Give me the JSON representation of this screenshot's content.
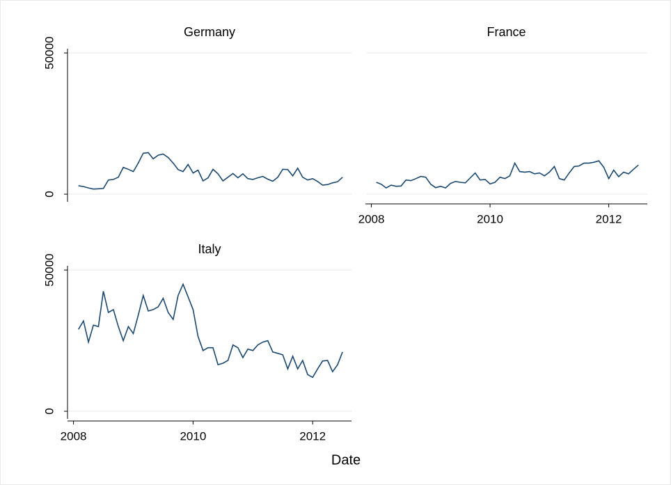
{
  "chart_data": [
    {
      "type": "line",
      "title": "Germany",
      "color": "#1a476f",
      "x": [
        2008.083,
        2008.167,
        2008.25,
        2008.333,
        2008.417,
        2008.5,
        2008.583,
        2008.667,
        2008.75,
        2008.833,
        2008.917,
        2009,
        2009.083,
        2009.167,
        2009.25,
        2009.333,
        2009.417,
        2009.5,
        2009.583,
        2009.667,
        2009.75,
        2009.833,
        2009.917,
        2010,
        2010.083,
        2010.167,
        2010.25,
        2010.333,
        2010.417,
        2010.5,
        2010.583,
        2010.667,
        2010.75,
        2010.833,
        2010.917,
        2011,
        2011.083,
        2011.167,
        2011.25,
        2011.333,
        2011.417,
        2011.5,
        2011.583,
        2011.667,
        2011.75,
        2011.833,
        2011.917,
        2012,
        2012.083,
        2012.167,
        2012.25,
        2012.333,
        2012.417,
        2012.5
      ],
      "values": [
        3000,
        2700,
        2200,
        1800,
        1900,
        2000,
        5000,
        5200,
        6000,
        9500,
        8800,
        8000,
        11000,
        14500,
        14700,
        12500,
        13800,
        14200,
        13000,
        11000,
        8700,
        8000,
        10500,
        7500,
        8500,
        4700,
        5800,
        8800,
        7200,
        4700,
        6000,
        7300,
        5800,
        7200,
        5500,
        5200,
        5800,
        6300,
        5300,
        4600,
        6000,
        8800,
        8700,
        6500,
        9200,
        6000,
        5000,
        5500,
        4500,
        3200,
        3400,
        4000,
        4400,
        6000
      ],
      "xlim": [
        2007.9,
        2012.65
      ],
      "ylim": [
        -2700,
        51500
      ],
      "yticks": [
        0,
        50000
      ],
      "grid": true
    },
    {
      "type": "line",
      "title": "France",
      "color": "#1a476f",
      "x": [
        2008.083,
        2008.167,
        2008.25,
        2008.333,
        2008.417,
        2008.5,
        2008.583,
        2008.667,
        2008.75,
        2008.833,
        2008.917,
        2009,
        2009.083,
        2009.167,
        2009.25,
        2009.333,
        2009.417,
        2009.5,
        2009.583,
        2009.667,
        2009.75,
        2009.833,
        2009.917,
        2010,
        2010.083,
        2010.167,
        2010.25,
        2010.333,
        2010.417,
        2010.5,
        2010.583,
        2010.667,
        2010.75,
        2010.833,
        2010.917,
        2011,
        2011.083,
        2011.167,
        2011.25,
        2011.333,
        2011.417,
        2011.5,
        2011.583,
        2011.667,
        2011.75,
        2011.833,
        2011.917,
        2012,
        2012.083,
        2012.167,
        2012.25,
        2012.333,
        2012.417,
        2012.5
      ],
      "values": [
        4200,
        3500,
        2200,
        3200,
        2800,
        2900,
        5000,
        4800,
        5500,
        6300,
        6000,
        3500,
        2300,
        2800,
        2200,
        3800,
        4500,
        4200,
        4000,
        5800,
        7500,
        5000,
        5200,
        3600,
        4200,
        6000,
        5500,
        6500,
        11000,
        8000,
        7800,
        8000,
        7200,
        7500,
        6500,
        7800,
        9800,
        5500,
        5000,
        7500,
        9800,
        10000,
        11000,
        11000,
        11300,
        11800,
        9500,
        5500,
        8500,
        6200,
        7800,
        7200,
        8800,
        10300
      ],
      "xlim": [
        2007.9,
        2012.65
      ],
      "ylim": [
        -2700,
        51500
      ],
      "yticks": [
        0,
        50000
      ],
      "xticks": [
        2008,
        2010,
        2012
      ],
      "grid": true
    },
    {
      "type": "line",
      "title": "Italy",
      "color": "#1a476f",
      "x": [
        2008.083,
        2008.167,
        2008.25,
        2008.333,
        2008.417,
        2008.5,
        2008.583,
        2008.667,
        2008.75,
        2008.833,
        2008.917,
        2009,
        2009.083,
        2009.167,
        2009.25,
        2009.333,
        2009.417,
        2009.5,
        2009.583,
        2009.667,
        2009.75,
        2009.833,
        2009.917,
        2010,
        2010.083,
        2010.167,
        2010.25,
        2010.333,
        2010.417,
        2010.5,
        2010.583,
        2010.667,
        2010.75,
        2010.833,
        2010.917,
        2011,
        2011.083,
        2011.167,
        2011.25,
        2011.333,
        2011.417,
        2011.5,
        2011.583,
        2011.667,
        2011.75,
        2011.833,
        2011.917,
        2012,
        2012.083,
        2012.167,
        2012.25,
        2012.333,
        2012.417,
        2012.5
      ],
      "values": [
        29000,
        32000,
        24500,
        30500,
        30000,
        42500,
        35000,
        36000,
        30000,
        25000,
        30000,
        27500,
        34000,
        41000,
        35500,
        36000,
        37000,
        40000,
        35000,
        32500,
        41000,
        45000,
        40500,
        36000,
        26500,
        21500,
        22500,
        22500,
        16500,
        17000,
        18000,
        23500,
        22500,
        19000,
        22000,
        21500,
        23500,
        24500,
        25000,
        21000,
        20500,
        20000,
        15000,
        19500,
        15000,
        18000,
        13000,
        12000,
        15000,
        17800,
        18000,
        14000,
        16500,
        21000
      ],
      "xlim": [
        2007.9,
        2012.65
      ],
      "ylim": [
        -2700,
        51500
      ],
      "yticks": [
        0,
        50000
      ],
      "xticks": [
        2008,
        2010,
        2012
      ],
      "grid": true
    }
  ],
  "x_label": "Date"
}
